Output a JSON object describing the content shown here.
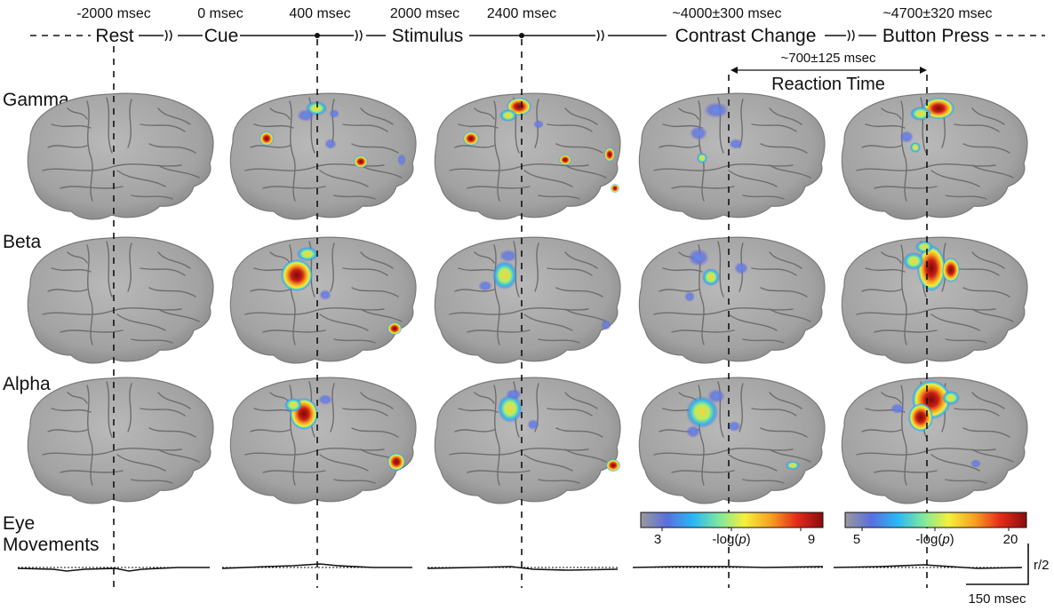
{
  "timeline": {
    "times": [
      {
        "id": "t-rest",
        "label": "-2000 msec"
      },
      {
        "id": "t-cue",
        "label": "0 msec"
      },
      {
        "id": "t-400",
        "label": "400 msec"
      },
      {
        "id": "t-stim",
        "label": "2000 msec"
      },
      {
        "id": "t-2400",
        "label": "2400 msec"
      },
      {
        "id": "t-contrast",
        "label": "~4000±300 msec"
      },
      {
        "id": "t-button",
        "label": "~4700±320 msec"
      }
    ],
    "events": [
      {
        "id": "ev-rest",
        "label": "Rest"
      },
      {
        "id": "ev-cue",
        "label": "Cue"
      },
      {
        "id": "ev-stimulus",
        "label": "Stimulus"
      },
      {
        "id": "ev-contrast",
        "label": "Contrast Change"
      },
      {
        "id": "ev-button",
        "label": "Button Press"
      }
    ],
    "reaction": {
      "duration": "~700±125 msec",
      "label": "Reaction Time"
    }
  },
  "rows": [
    {
      "id": "gamma",
      "label": "Gamma"
    },
    {
      "id": "beta",
      "label": "Beta"
    },
    {
      "id": "alpha",
      "label": "Alpha"
    }
  ],
  "eye": {
    "line1": "Eye",
    "line2": "Movements"
  },
  "colorbars": [
    {
      "id": "cb-low",
      "min": "3",
      "max": "9",
      "label": "-log(",
      "var": "p",
      "close": ")",
      "colors": [
        "#9a9a9a",
        "#5a6ee0",
        "#29b6f6",
        "#7ee8a0",
        "#f6f03a",
        "#f7a022",
        "#e52a1a",
        "#8a0d0d"
      ]
    },
    {
      "id": "cb-high",
      "min": "5",
      "max": "20",
      "label": "-log(",
      "var": "p",
      "close": ")",
      "colors": [
        "#9a9a9a",
        "#5a6ee0",
        "#29b6f6",
        "#7ee8a0",
        "#f6f03a",
        "#f7a022",
        "#e52a1a",
        "#8a0d0d"
      ]
    }
  ],
  "scalebar": {
    "amp": "r/2",
    "time": "150 msec"
  },
  "colors": {
    "brain": "#a9a9a9",
    "sulci": "#6e6e6e",
    "line": "#111111"
  }
}
